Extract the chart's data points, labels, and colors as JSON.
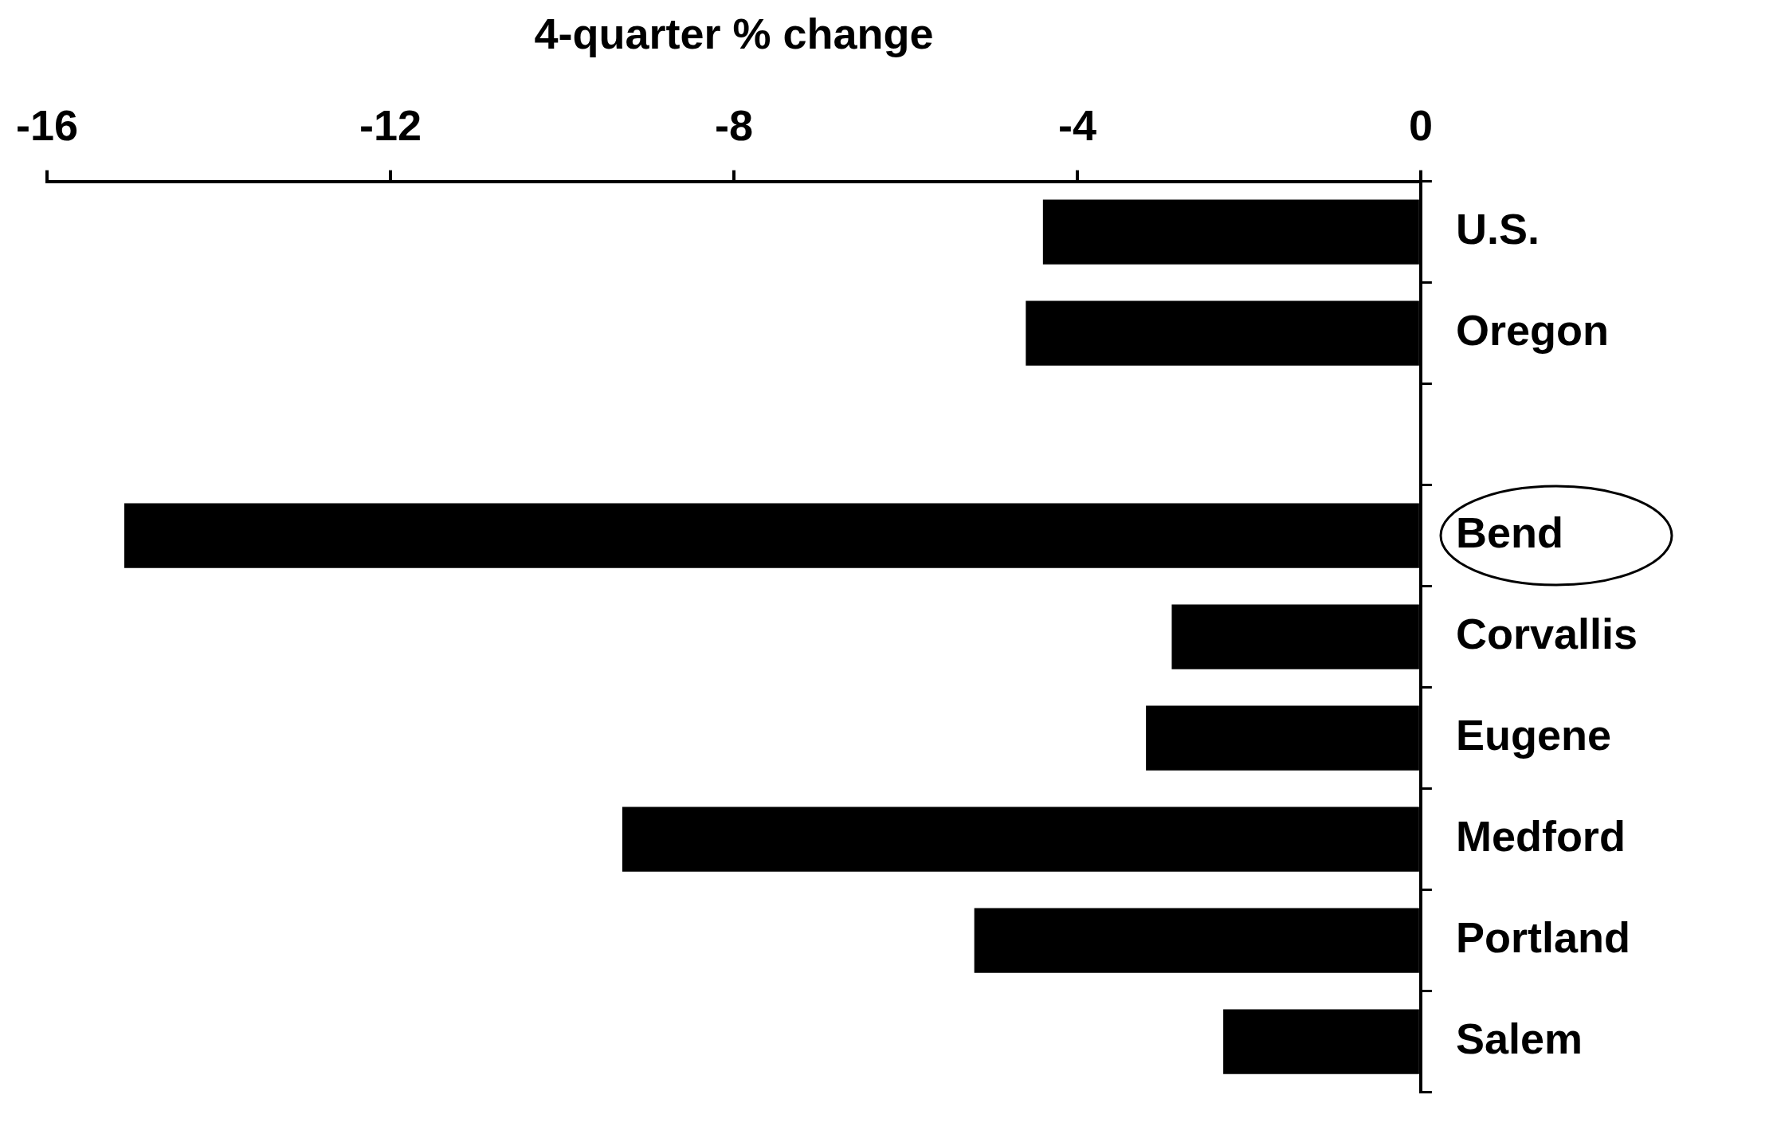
{
  "chart_data": {
    "type": "bar",
    "orientation": "horizontal",
    "xlabel": "4-quarter % change",
    "categories": [
      "U.S.",
      "Oregon",
      null,
      "Bend",
      "Corvallis",
      "Eugene",
      "Medford",
      "Portland",
      "Salem"
    ],
    "values": [
      -4.4,
      -4.6,
      null,
      -15.1,
      -2.9,
      -3.2,
      -9.3,
      -5.2,
      -2.3
    ],
    "color": "#000000",
    "xlim": [
      -16,
      0
    ],
    "xticks": [
      -16,
      -12,
      -8,
      -4,
      0
    ]
  }
}
